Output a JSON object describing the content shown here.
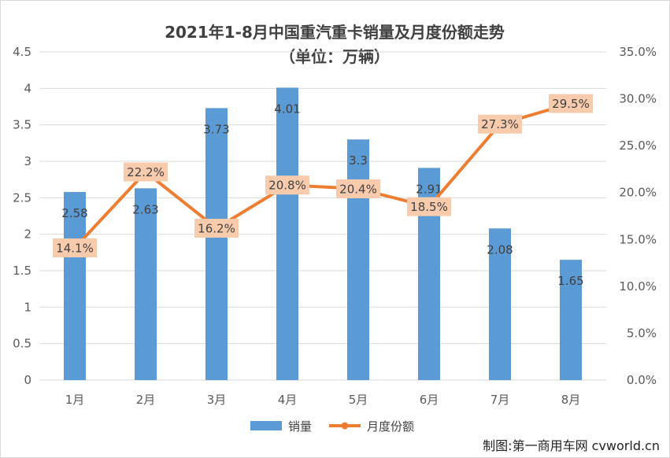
{
  "chart_data": {
    "type": "bar+line",
    "title": "2021年1-8月中国重汽重卡销量及月度份额走势",
    "subtitle": "（单位：万辆）",
    "categories": [
      "1月",
      "2月",
      "3月",
      "4月",
      "5月",
      "6月",
      "7月",
      "8月"
    ],
    "series": [
      {
        "name": "销量",
        "type": "bar",
        "axis": "left",
        "color": "#5b9bd5",
        "values": [
          2.58,
          2.63,
          3.73,
          4.01,
          3.3,
          2.91,
          2.08,
          1.65
        ],
        "labels": [
          "2.58",
          "2.63",
          "3.73",
          "4.01",
          "3.3",
          "2.91",
          "2.08",
          "1.65"
        ]
      },
      {
        "name": "月度份额",
        "type": "line",
        "axis": "right",
        "color": "#ed7d31",
        "label_bg": "#f8cbad",
        "values": [
          14.1,
          22.2,
          16.2,
          20.8,
          20.4,
          18.5,
          27.3,
          29.5
        ],
        "labels": [
          "14.1%",
          "22.2%",
          "16.2%",
          "20.8%",
          "20.4%",
          "18.5%",
          "27.3%",
          "29.5%"
        ]
      }
    ],
    "y_left": {
      "min": 0,
      "max": 4.5,
      "ticks": [
        0,
        0.5,
        1,
        1.5,
        2,
        2.5,
        3,
        3.5,
        4,
        4.5
      ],
      "tick_labels": [
        "0",
        "0.5",
        "1",
        "1.5",
        "2",
        "2.5",
        "3",
        "3.5",
        "4",
        "4.5"
      ]
    },
    "y_right": {
      "min": 0,
      "max": 35,
      "ticks": [
        0,
        5,
        10,
        15,
        20,
        25,
        30,
        35
      ],
      "tick_labels": [
        "0.0%",
        "5.0%",
        "10.0%",
        "15.0%",
        "20.0%",
        "25.0%",
        "30.0%",
        "35.0%"
      ]
    },
    "grid": true,
    "gridline_color": "#d9d9d9",
    "legend_position": "bottom"
  },
  "watermark": "制图:第一商用车网 cvworld.cn"
}
